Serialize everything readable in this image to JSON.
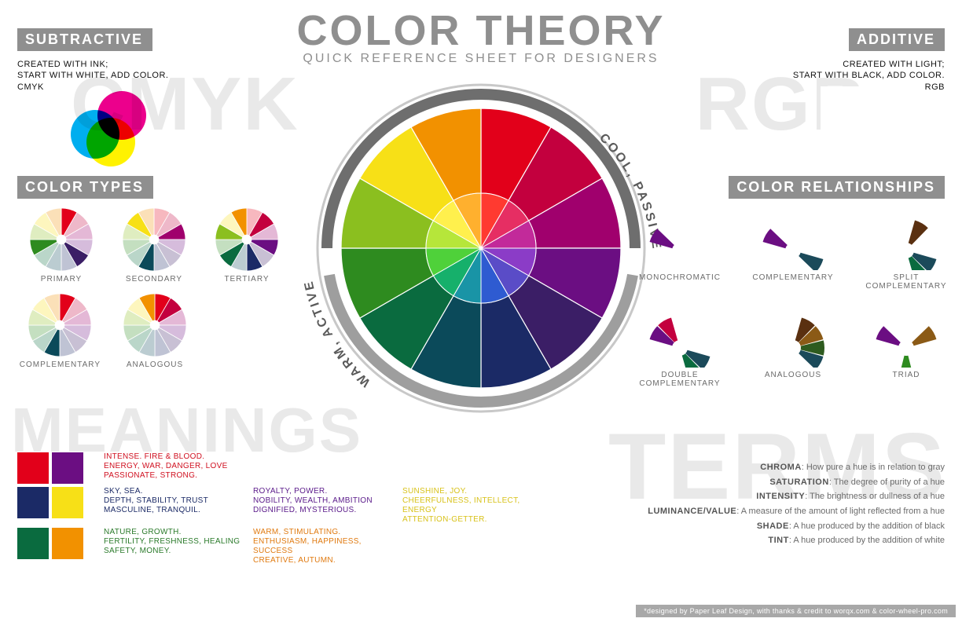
{
  "title": "COLOR THEORY",
  "subtitle": "QUICK REFERENCE SHEET FOR DESIGNERS",
  "bg_words": {
    "cmyk": "CMYK",
    "rgb": "RGB",
    "meanings": "MEANINGS",
    "terms": "TERMS"
  },
  "subtractive": {
    "header": "SUBTRACTIVE",
    "desc": "CREATED WITH INK;\nSTART WITH WHITE, ADD COLOR.\nCMYK",
    "circles": [
      "#00aeef",
      "#ec008c",
      "#fff200"
    ]
  },
  "additive": {
    "header": "ADDITIVE",
    "desc": "CREATED WITH LIGHT;\nSTART WITH BLACK, ADD COLOR.\nRGB",
    "circles": [
      "#ff0000",
      "#00ff00",
      "#0000ff"
    ]
  },
  "color_types": {
    "header": "COLOR TYPES",
    "wheels": [
      {
        "label": "PRIMARY",
        "highlight": [
          0,
          4,
          8
        ]
      },
      {
        "label": "SECONDARY",
        "highlight": [
          2,
          6,
          10
        ]
      },
      {
        "label": "TERTIARY",
        "highlight": [
          1,
          3,
          5,
          7,
          9,
          11
        ]
      },
      {
        "label": "COMPLEMENTARY",
        "highlight": [
          0,
          6
        ]
      },
      {
        "label": "ANALOGOUS",
        "highlight": [
          11,
          0,
          1
        ]
      }
    ]
  },
  "main_wheel": {
    "colors": [
      "#e2001a",
      "#c3003e",
      "#a0006d",
      "#6b0e82",
      "#3b1e66",
      "#1b2a66",
      "#0b4a5a",
      "#0a6b3f",
      "#2e8b1f",
      "#8bbf1f",
      "#f7e017",
      "#f29100"
    ],
    "inner_colors": [
      "#ff3a30",
      "#e62e63",
      "#c22a9a",
      "#8b3cc7",
      "#5a4cc7",
      "#2e5bd1",
      "#1994a6",
      "#16b06b",
      "#4fd13a",
      "#b6e63a",
      "#fff04d",
      "#ffb02e"
    ],
    "outer_ring_color": "#707070",
    "gap_ring_color": "#ffffff",
    "cool_label": "COOL, PASSIVE",
    "warm_label": "WARM, ACTIVE",
    "ring_arcs": [
      {
        "start": 270,
        "end": 90,
        "color": "#6e6e6e"
      },
      {
        "start": 100,
        "end": 260,
        "color": "#9e9e9e"
      }
    ]
  },
  "relationships": {
    "header": "COLOR RELATIONSHIPS",
    "items": [
      {
        "label": "MONOCHROMATIC",
        "slices": [
          {
            "a": 300,
            "c": "#6b0e82"
          }
        ]
      },
      {
        "label": "COMPLEMENTARY",
        "slices": [
          {
            "a": 300,
            "c": "#6b0e82"
          },
          {
            "a": 120,
            "c": "#1b4a5a"
          }
        ]
      },
      {
        "label": "SPLIT\nCOMPLEMENTARY",
        "slices": [
          {
            "a": 30,
            "c": "#5a3010"
          },
          {
            "a": 120,
            "c": "#1b4a5a"
          },
          {
            "a": 150,
            "c": "#0a6b3f"
          }
        ]
      },
      {
        "label": "DOUBLE\nCOMPLEMENTARY",
        "slices": [
          {
            "a": 300,
            "c": "#6b0e82"
          },
          {
            "a": 330,
            "c": "#c3003e"
          },
          {
            "a": 120,
            "c": "#1b4a5a"
          },
          {
            "a": 150,
            "c": "#0a6b3f"
          }
        ]
      },
      {
        "label": "ANALOGOUS",
        "slices": [
          {
            "a": 30,
            "c": "#5a3010"
          },
          {
            "a": 60,
            "c": "#8b5a16"
          },
          {
            "a": 90,
            "c": "#2e5b1f"
          },
          {
            "a": 120,
            "c": "#1b4a5a"
          }
        ]
      },
      {
        "label": "TRIAD",
        "slices": [
          {
            "a": 300,
            "c": "#6b0e82"
          },
          {
            "a": 60,
            "c": "#8b5a16"
          },
          {
            "a": 180,
            "c": "#2e8b1f"
          }
        ]
      }
    ]
  },
  "meanings": {
    "header": "MEANINGS",
    "rows": [
      {
        "swatches": [
          "#e2001a",
          "#6b0e82"
        ],
        "cols": [
          {
            "color": "#d01020",
            "text": "INTENSE. FIRE & BLOOD.\nENERGY, WAR, DANGER, LOVE\nPASSIONATE, STRONG."
          }
        ]
      },
      {
        "swatches": [
          "#1b2a66",
          "#f7e017"
        ],
        "cols": [
          {
            "color": "#1b2a66",
            "text": "SKY, SEA.\nDEPTH, STABILITY, TRUST\nMASCULINE, TRANQUIL."
          },
          {
            "color": "#5a1a8a",
            "text": "ROYALTY, POWER.\nNOBILITY, WEALTH, AMBITION\nDIGNIFIED, MYSTERIOUS."
          },
          {
            "color": "#d8c21a",
            "text": "SUNSHINE, JOY.\nCHEERFULNESS, INTELLECT, ENERGY\nATTENTION-GETTER."
          }
        ]
      },
      {
        "swatches": [
          "#0a6b3f",
          "#f29100"
        ],
        "cols": [
          {
            "color": "#2a7a2a",
            "text": "NATURE, GROWTH.\nFERTILITY, FRESHNESS, HEALING\nSAFETY, MONEY."
          },
          {
            "color": "#e07a10",
            "text": "WARM, STIMULATING.\nENTHUSIASM, HAPPINESS, SUCCESS\nCREATIVE, AUTUMN."
          }
        ]
      }
    ]
  },
  "terms": {
    "header": "TERMS",
    "items": [
      {
        "term": "CHROMA",
        "def": "How pure a hue is in relation to gray"
      },
      {
        "term": "SATURATION",
        "def": "The degree of purity of a hue"
      },
      {
        "term": "INTENSITY",
        "def": "The brightness or dullness of a hue"
      },
      {
        "term": "LUMINANCE/VALUE",
        "def": "A measure of the amount of light reflected from a hue"
      },
      {
        "term": "SHADE",
        "def": "A hue produced by the addition of black"
      },
      {
        "term": "TINT",
        "def": "A hue produced by the addition of white"
      }
    ]
  },
  "credit": "*designed by Paper Leaf Design, with thanks & credit to worqx.com & color-wheel-pro.com"
}
